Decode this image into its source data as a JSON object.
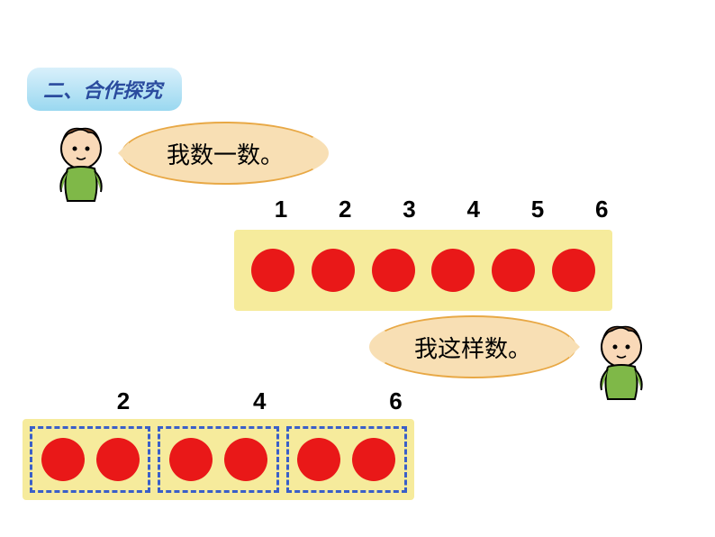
{
  "section": {
    "label": "二、合作探究",
    "bg_gradient_top": "#d9f0fb",
    "bg_gradient_bottom": "#9ad8f0",
    "text_color": "#2a4b9e"
  },
  "bubble1": {
    "text": "我数一数。",
    "bg_color": "#f8dfb4",
    "border_color": "#e8a845",
    "text_color": "#000000"
  },
  "bubble2": {
    "text": "我这样数。",
    "bg_color": "#f8dfb4",
    "border_color": "#e8a845",
    "text_color": "#000000"
  },
  "numbers1": [
    "1",
    "2",
    "3",
    "4",
    "5",
    "6"
  ],
  "numbers2": [
    "2",
    "4",
    "6"
  ],
  "box": {
    "bg_color": "#f6eb9c",
    "dot_color": "#e91818",
    "dot_size": 48,
    "dashed_border_color": "#3a5fc8"
  },
  "box1_dots": 6,
  "box2_groups": [
    2,
    2,
    2
  ]
}
